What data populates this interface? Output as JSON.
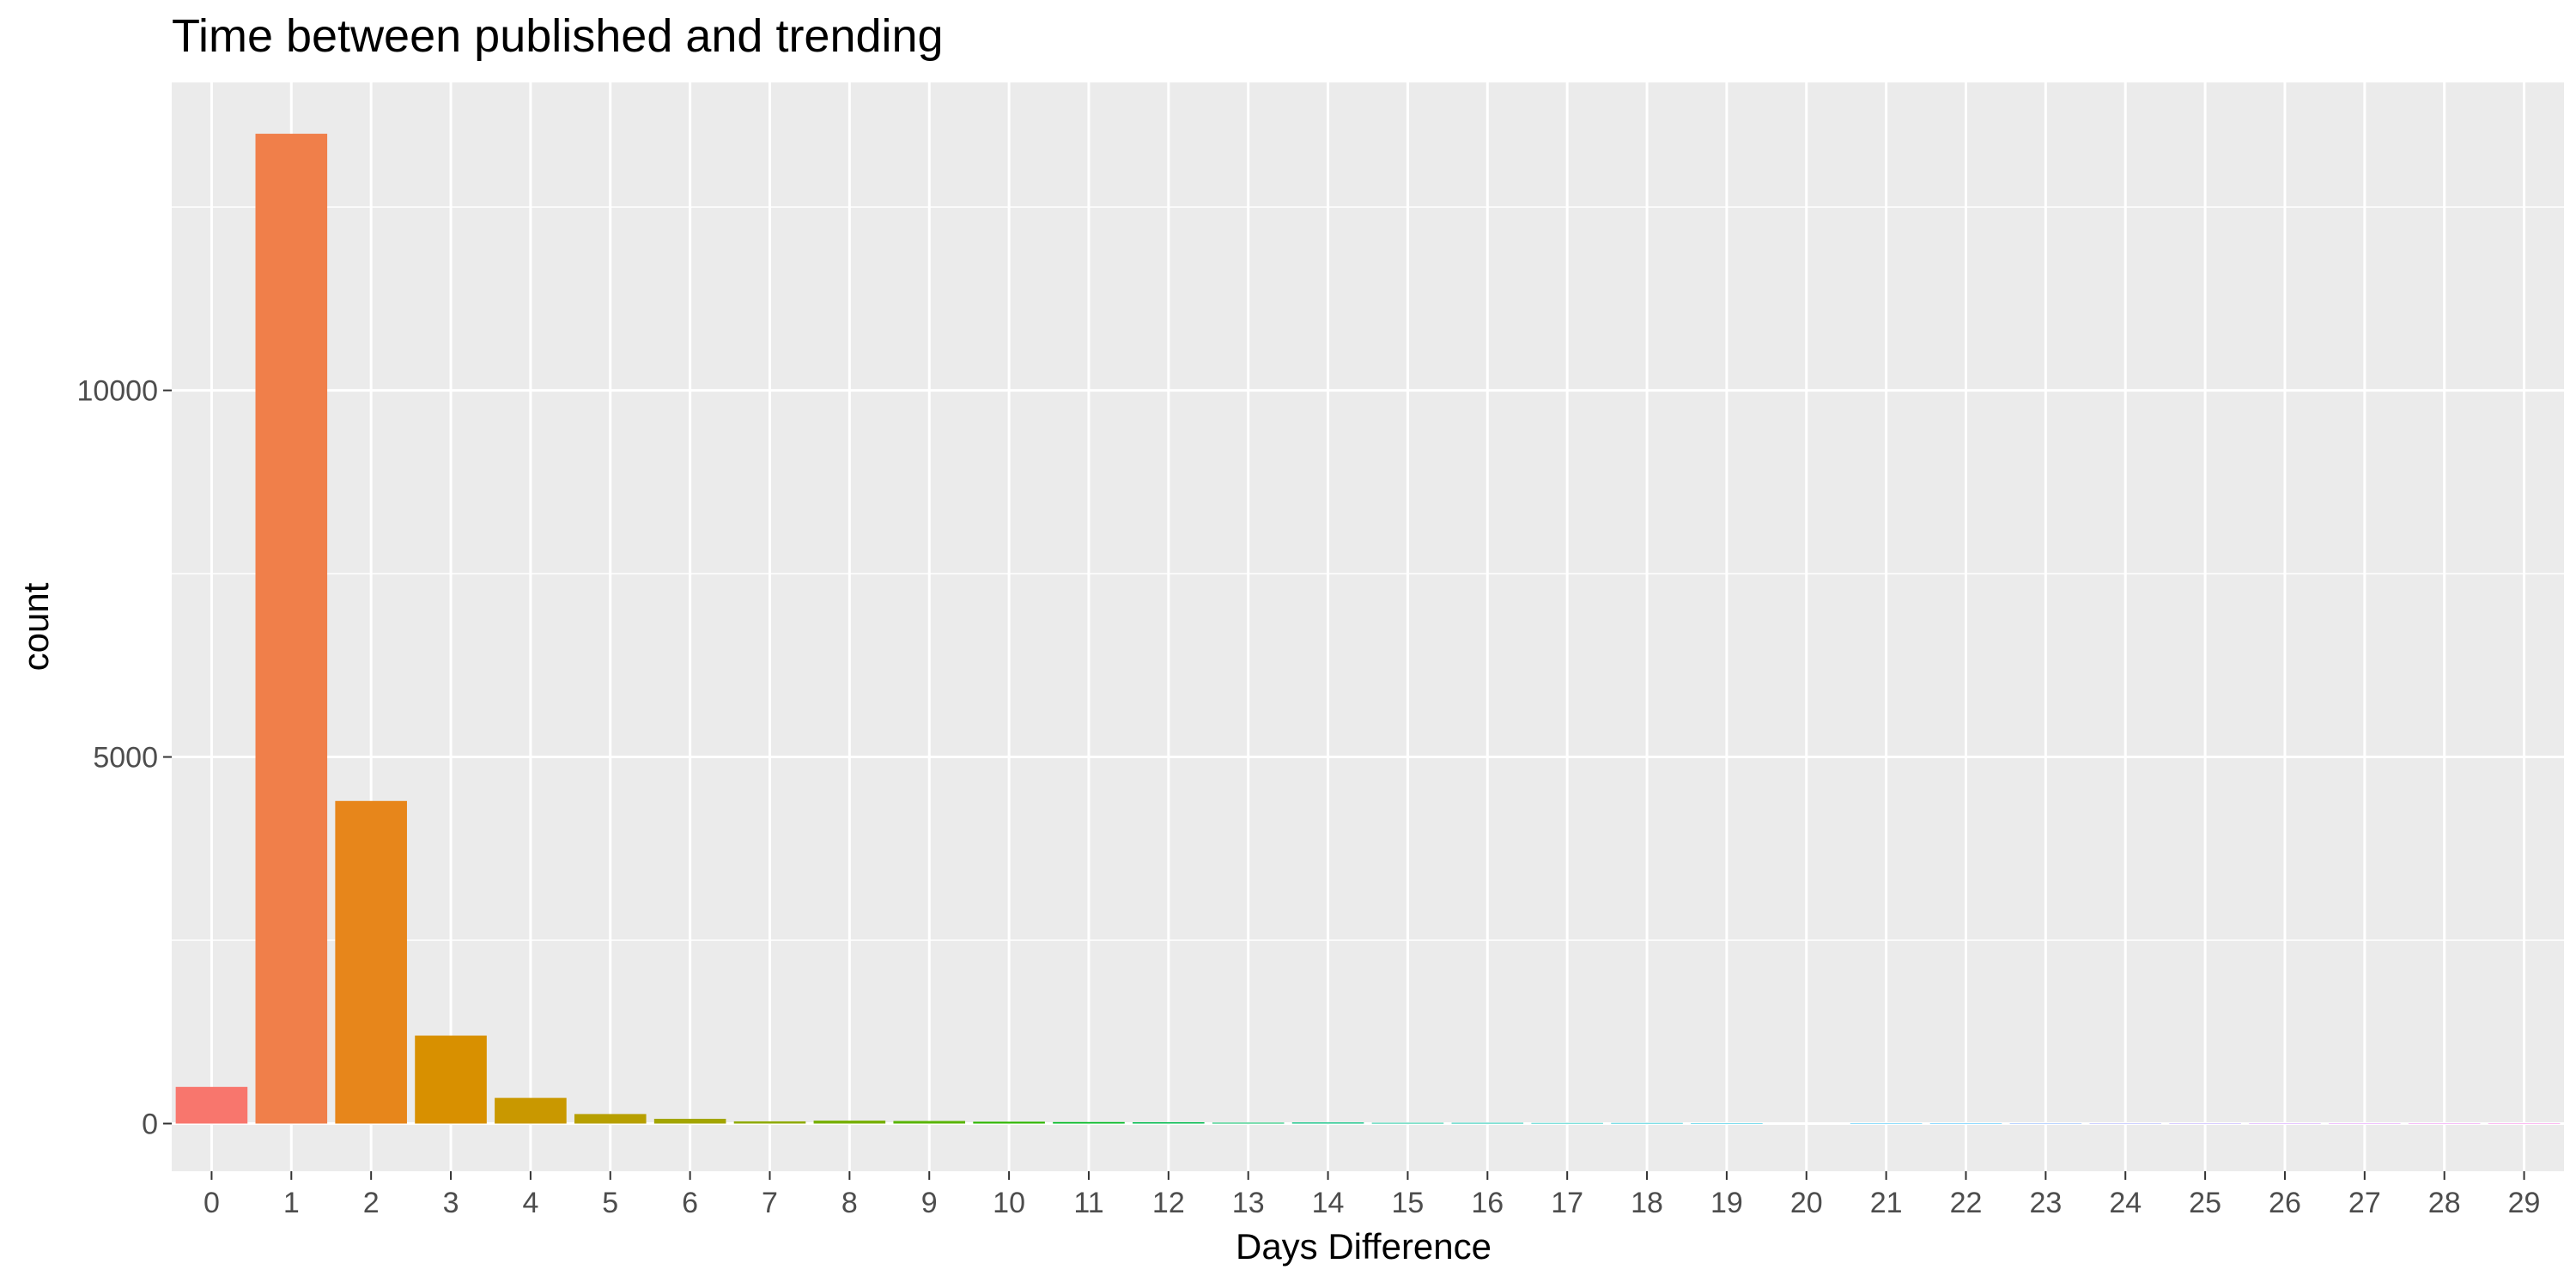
{
  "chart_data": {
    "type": "bar",
    "title": "Time between published and trending",
    "xlabel": "Days Difference",
    "ylabel": "count",
    "categories": [
      "0",
      "1",
      "2",
      "3",
      "4",
      "5",
      "6",
      "7",
      "8",
      "9",
      "10",
      "11",
      "12",
      "13",
      "14",
      "15",
      "16",
      "17",
      "18",
      "19",
      "20",
      "21",
      "22",
      "23",
      "24",
      "25",
      "26",
      "27",
      "28",
      "29"
    ],
    "values": [
      500,
      13500,
      4400,
      1200,
      350,
      130,
      65,
      30,
      40,
      35,
      25,
      20,
      18,
      12,
      15,
      10,
      10,
      8,
      8,
      6,
      0,
      5,
      5,
      5,
      5,
      5,
      5,
      5,
      5,
      5
    ],
    "colors": [
      "#F8766D",
      "#F07F4A",
      "#E7861B",
      "#D89000",
      "#C99800",
      "#B79F00",
      "#A3A500",
      "#8FAA00",
      "#76AF00",
      "#58B400",
      "#2CB600",
      "#00B923",
      "#00BB4E",
      "#00BD66",
      "#00BE7D",
      "#00C093",
      "#00C0A7",
      "#00C0BA",
      "#00BECC",
      "#00BBDC",
      "#00B6EB",
      "#00B0F6",
      "#00A7FF",
      "#619CFF",
      "#8B93FF",
      "#A58AFF",
      "#C77CFF",
      "#DB72FB",
      "#EC69EF",
      "#F763E0"
    ],
    "yticks": [
      0,
      5000,
      10000
    ],
    "ylim": [
      -650,
      14200
    ],
    "grid": true,
    "legend": "none"
  }
}
